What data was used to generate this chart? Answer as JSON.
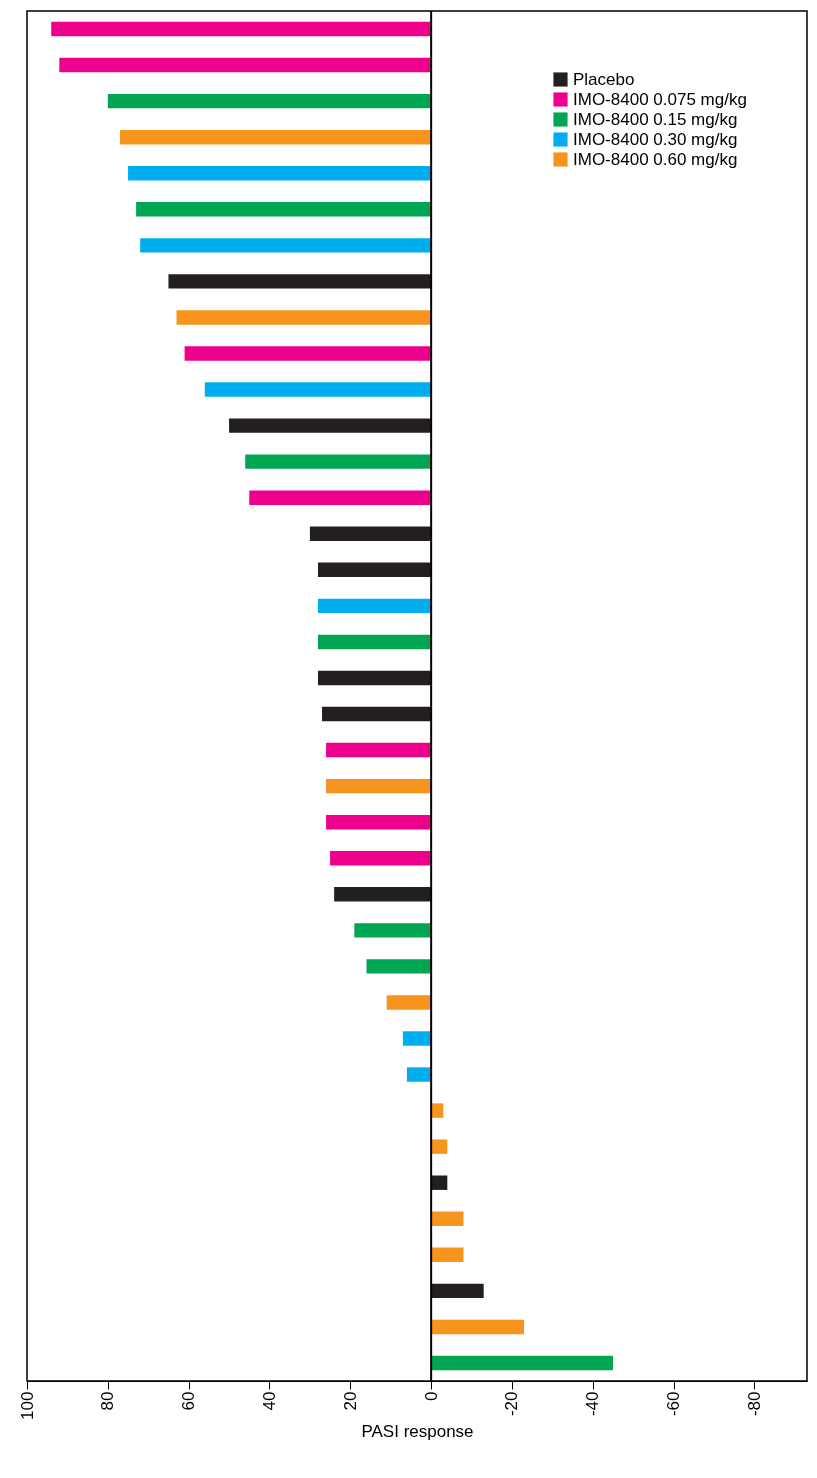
{
  "chart_data": {
    "type": "bar",
    "orientation": "horizontal",
    "xlabel": "PASI response",
    "categories": [
      null,
      null,
      null,
      null,
      null,
      null,
      null,
      null,
      null,
      null,
      null,
      null,
      null,
      null,
      null,
      null,
      null,
      null,
      null,
      null,
      null,
      null,
      null,
      null,
      null,
      null,
      null,
      null,
      null,
      null,
      null,
      null,
      null,
      null,
      null,
      null,
      null,
      null
    ],
    "series": [
      {
        "name": "Placebo",
        "color": "#231f20",
        "values": [
          null,
          null,
          null,
          null,
          null,
          null,
          null,
          65,
          null,
          null,
          null,
          50,
          null,
          null,
          30,
          28,
          null,
          null,
          28,
          27,
          null,
          null,
          null,
          null,
          24,
          null,
          null,
          null,
          null,
          null,
          null,
          null,
          -4,
          null,
          null,
          -13,
          null,
          null
        ]
      },
      {
        "name": "IMO-8400 0.075 mg/kg",
        "color": "#ec008c",
        "values": [
          94,
          92,
          null,
          null,
          null,
          null,
          null,
          null,
          null,
          61,
          null,
          null,
          null,
          45,
          null,
          null,
          null,
          null,
          null,
          null,
          26,
          null,
          26,
          25,
          null,
          null,
          null,
          null,
          null,
          null,
          null,
          null,
          null,
          null,
          null,
          null,
          null,
          null
        ]
      },
      {
        "name": "IMO-8400 0.15 mg/kg",
        "color": "#00a651",
        "values": [
          null,
          null,
          80,
          null,
          null,
          73,
          null,
          null,
          null,
          null,
          null,
          null,
          46,
          null,
          null,
          null,
          null,
          28,
          null,
          null,
          null,
          null,
          null,
          null,
          null,
          19,
          16,
          null,
          null,
          null,
          null,
          null,
          null,
          null,
          null,
          null,
          null,
          -45
        ]
      },
      {
        "name": "IMO-8400 0.30 mg/kg",
        "color": "#00aeef",
        "values": [
          null,
          null,
          null,
          null,
          75,
          null,
          72,
          null,
          null,
          null,
          56,
          null,
          null,
          null,
          null,
          null,
          28,
          null,
          null,
          null,
          null,
          null,
          null,
          null,
          null,
          null,
          null,
          null,
          7,
          6,
          null,
          null,
          null,
          null,
          null,
          null,
          null,
          null
        ]
      },
      {
        "name": "IMO-8400 0.60 mg/kg",
        "color": "#f7941d",
        "values": [
          null,
          null,
          null,
          77,
          null,
          null,
          null,
          null,
          63,
          null,
          null,
          null,
          null,
          null,
          null,
          null,
          null,
          null,
          null,
          null,
          null,
          26,
          null,
          null,
          null,
          null,
          null,
          11,
          null,
          null,
          -3,
          -4,
          null,
          -8,
          -8,
          null,
          -23,
          null
        ]
      }
    ],
    "xlim": [
      100,
      -93
    ],
    "xticks": [
      100,
      80,
      60,
      40,
      20,
      0,
      -20,
      -40,
      -60,
      -80
    ],
    "ref_lines": [
      {
        "axis": "x",
        "value": 0,
        "color": "#000000"
      }
    ],
    "legend": "top right"
  }
}
